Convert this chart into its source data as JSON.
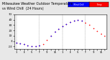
{
  "title": "Milwaukee Weather Outdoor Temperature vs Wind Chill (24 Hours)",
  "background_color": "#e8e8e8",
  "plot_bg": "#ffffff",
  "temp_color": "#ff0000",
  "chill_color": "#0000ff",
  "grid_color": "#888888",
  "ylim": [
    -15,
    50
  ],
  "yticks": [
    -10,
    0,
    10,
    20,
    30,
    40,
    50
  ],
  "temp_hours": [
    0,
    1,
    2,
    3,
    4,
    5,
    6,
    7,
    8,
    9,
    10,
    11,
    12,
    13,
    14,
    15,
    16,
    17,
    18,
    19,
    20,
    21,
    22,
    23
  ],
  "temp_vals": [
    -3,
    -4,
    -6,
    -8,
    -9,
    -9,
    -8,
    -5,
    2,
    10,
    17,
    23,
    28,
    32,
    36,
    38,
    39,
    38,
    35,
    30,
    24,
    19,
    14,
    10
  ],
  "chill_hours": [
    0,
    1,
    2,
    3,
    4,
    5,
    6,
    9,
    10,
    11,
    12,
    13,
    14,
    15,
    16,
    17
  ],
  "chill_vals": [
    -3,
    -4,
    -6,
    -8,
    -9,
    -9,
    -8,
    10,
    17,
    23,
    28,
    32,
    36,
    38,
    39,
    38
  ],
  "legend_blue_label": "Wind Chill",
  "legend_red_label": "Temp",
  "dot_size": 1.2,
  "title_fontsize": 3.5,
  "tick_fontsize": 2.8
}
